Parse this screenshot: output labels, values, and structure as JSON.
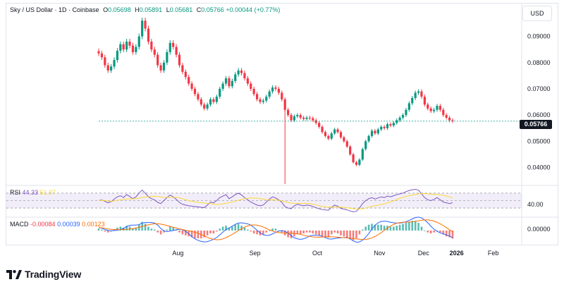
{
  "legend": {
    "symbol": "Sky / US Dollar · 1D · Coinbase",
    "open_key": "O",
    "open": "0.05698",
    "high_key": "H",
    "high": "0.05891",
    "low_key": "L",
    "low": "0.05681",
    "close_key": "C",
    "close": "0.05766",
    "change": "+0.00044 (+0.77%)"
  },
  "currency_button": "USD",
  "current_price": "0.05766",
  "rsi": {
    "label": "RSI",
    "value": "44.33",
    "ma_value": "51.97",
    "axis_label": "40.00"
  },
  "macd": {
    "label": "MACD",
    "hist": "-0.00084",
    "macd": "0.00039",
    "signal": "0.00123",
    "axis_label": "0.00000"
  },
  "brand": "TradingView",
  "colors": {
    "up": "#089981",
    "down": "#f23645",
    "rsi_line": "#7e57c2",
    "rsi_ma": "#fdd835",
    "macd_line": "#2962ff",
    "signal_line": "#ff6d00"
  },
  "chart_data": {
    "type": "candlestick",
    "price_axis_ticks": [
      "0.09000",
      "0.08000",
      "0.07000",
      "0.06000",
      "0.05000",
      "0.04000"
    ],
    "time_axis_labels": [
      "Aug",
      "Sep",
      "Oct",
      "Nov",
      "Dec",
      "2026",
      "Feb"
    ],
    "price_range": [
      0.0345,
      0.0985
    ],
    "close_series": [
      0.0835,
      0.082,
      0.079,
      0.077,
      0.0785,
      0.081,
      0.0845,
      0.087,
      0.085,
      0.088,
      0.0865,
      0.084,
      0.086,
      0.09,
      0.096,
      0.093,
      0.088,
      0.085,
      0.083,
      0.079,
      0.077,
      0.08,
      0.084,
      0.0875,
      0.086,
      0.083,
      0.079,
      0.0765,
      0.0745,
      0.072,
      0.07,
      0.068,
      0.066,
      0.064,
      0.0625,
      0.064,
      0.066,
      0.065,
      0.067,
      0.07,
      0.072,
      0.074,
      0.071,
      0.073,
      0.0755,
      0.077,
      0.076,
      0.074,
      0.072,
      0.07,
      0.068,
      0.066,
      0.065,
      0.0655,
      0.067,
      0.069,
      0.0705,
      0.07,
      0.0685,
      0.066,
      0.062,
      0.06,
      0.058,
      0.0595,
      0.06,
      0.059,
      0.0585,
      0.059,
      0.0588,
      0.058,
      0.057,
      0.0555,
      0.0535,
      0.052,
      0.051,
      0.053,
      0.0545,
      0.0535,
      0.0515,
      0.05,
      0.048,
      0.045,
      0.042,
      0.041,
      0.043,
      0.047,
      0.05,
      0.052,
      0.054,
      0.053,
      0.0545,
      0.0555,
      0.055,
      0.0565,
      0.056,
      0.057,
      0.058,
      0.059,
      0.06,
      0.062,
      0.0645,
      0.0665,
      0.0685,
      0.069,
      0.067,
      0.064,
      0.0625,
      0.0615,
      0.062,
      0.0635,
      0.062,
      0.06,
      0.059,
      0.058,
      0.0577
    ],
    "rsi_series": [
      50,
      52,
      48,
      44,
      47,
      54,
      60,
      63,
      58,
      66,
      61,
      55,
      60,
      70,
      78,
      70,
      60,
      55,
      52,
      45,
      42,
      50,
      58,
      65,
      60,
      53,
      45,
      40,
      38,
      36,
      35,
      34,
      33,
      32,
      31,
      38,
      46,
      44,
      50,
      58,
      62,
      66,
      55,
      60,
      66,
      70,
      65,
      58,
      52,
      46,
      42,
      38,
      36,
      38,
      46,
      54,
      60,
      57,
      52,
      45,
      34,
      30,
      28,
      36,
      40,
      38,
      36,
      38,
      37,
      34,
      31,
      28,
      26,
      25,
      24,
      32,
      38,
      35,
      29,
      27,
      25,
      22,
      20,
      21,
      30,
      42,
      50,
      55,
      58,
      54,
      57,
      60,
      58,
      62,
      60,
      63,
      66,
      68,
      70,
      74,
      77,
      79,
      80,
      78,
      68,
      58,
      52,
      50,
      53,
      58,
      52,
      46,
      44,
      42,
      44.33
    ],
    "macd_histogram": [
      0.0002,
      0.0001,
      -0.0001,
      -0.0002,
      -0.0001,
      0.0001,
      0.0003,
      0.0004,
      0.0003,
      0.0005,
      0.0004,
      0.0002,
      0.0003,
      0.0006,
      0.0009,
      0.0007,
      0.0004,
      0.0002,
      0.0001,
      -0.0002,
      -0.0004,
      -0.0002,
      0.0001,
      0.0004,
      0.0003,
      0.0001,
      -0.0002,
      -0.0004,
      -0.0005,
      -0.0006,
      -0.0007,
      -0.0008,
      -0.0008,
      -0.0008,
      -0.0007,
      -0.0005,
      -0.0003,
      -0.0003,
      -0.0001,
      0.0002,
      0.0004,
      0.0005,
      0.0003,
      0.0004,
      0.0006,
      0.0007,
      0.0005,
      0.0003,
      0.0001,
      -0.0001,
      -0.0003,
      -0.0004,
      -0.0005,
      -0.0004,
      -0.0002,
      0.0,
      0.0002,
      0.0002,
      0.0,
      -0.0002,
      -0.0005,
      -0.0007,
      -0.0008,
      -0.0006,
      -0.0004,
      -0.0004,
      -0.0003,
      -0.0002,
      -0.0002,
      -0.0003,
      -0.0004,
      -0.0005,
      -0.0006,
      -0.0007,
      -0.0007,
      -0.0004,
      -0.0002,
      -0.0003,
      -0.0005,
      -0.0006,
      -0.0007,
      -0.0009,
      -0.001,
      -0.0008,
      -0.0004,
      0.0001,
      0.0004,
      0.0006,
      0.0007,
      0.0006,
      0.0006,
      0.0006,
      0.0005,
      0.0005,
      0.0004,
      0.0004,
      0.0005,
      0.0006,
      0.0007,
      0.0008,
      0.0009,
      0.001,
      0.001,
      0.0008,
      0.0004,
      0.0,
      -0.0002,
      -0.0003,
      -0.0002,
      0.0,
      -0.0002,
      -0.0004,
      -0.0006,
      -0.0007,
      -0.00084
    ]
  }
}
